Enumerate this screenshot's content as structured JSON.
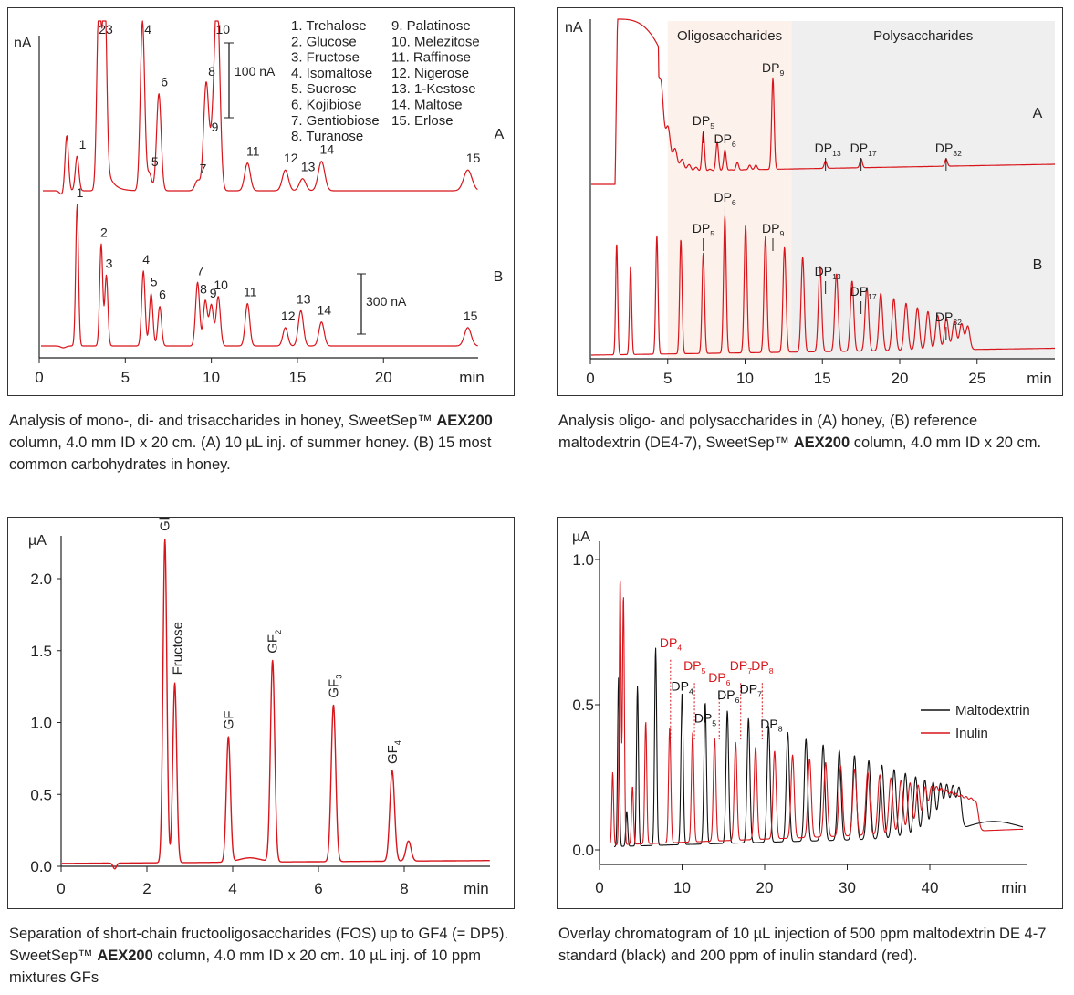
{
  "colors": {
    "red": "#d7151b",
    "black": "#111111",
    "axis": "#222222",
    "oligo_bg": "#fdf1ec",
    "poly_bg": "#efefef"
  },
  "captions": {
    "c1": {
      "before": "Analysis of mono-, di- and trisaccharides in honey, SweetSep™ ",
      "bold": "AEX200",
      "after": " column, 4.0 mm ID x 20 cm. (A) 10 µL inj. of summer honey. (B) 15 most common carbohydrates in honey."
    },
    "c2": {
      "before": "Analysis oligo- and polysaccharides in (A) honey, (B) reference maltodextrin (DE4-7), SweetSep™ ",
      "bold": "AEX200",
      "after": " column, 4.0 mm ID x 20 cm."
    },
    "c3": {
      "before": "Separation of short-chain fructooligosaccharides (FOS) up to GF4 (= DP5). SweetSep™ ",
      "bold": "AEX200",
      "after": " column, 4.0 mm ID x 20 cm. 10 µL inj. of 10 ppm mixtures GFs"
    },
    "c4": {
      "before": "Overlay chromatogram of 10 µL injection of 500 ppm maltodextrin DE 4-7 standard (black) and 200 ppm of inulin standard (red).",
      "bold": "",
      "after": ""
    }
  },
  "chart_data": [
    {
      "type": "line",
      "ylabel": "nA",
      "xlabel": "min",
      "xlim": [
        0,
        25.5
      ],
      "x_ticks": [
        0,
        5,
        10,
        15,
        20
      ],
      "scale_bars": [
        {
          "label": "100 nA",
          "trace": "A"
        },
        {
          "label": "300 nA",
          "trace": "B"
        }
      ],
      "legend": [
        "1. Trehalose",
        "2. Glucose",
        "3. Fructose",
        "4. Isomaltose",
        "5. Sucrose",
        "6. Kojibiose",
        "7. Gentiobiose",
        "8. Turanose",
        "9. Palatinose",
        "10. Melezitose",
        "11. Raffinose",
        "12. Nigerose",
        "13. 1-Kestose",
        "14. Maltose",
        "15. Erlose"
      ],
      "series": [
        {
          "name": "A",
          "peaks": [
            {
              "label": "",
              "x": 1.6,
              "h": 0.32
            },
            {
              "label": "1",
              "x": 2.2,
              "h": 0.2
            },
            {
              "label": "",
              "x": 3.45,
              "h": 1.05
            },
            {
              "label": "",
              "x": 3.8,
              "h": 1.05
            },
            {
              "label": "4",
              "x": 6.0,
              "h": 0.98
            },
            {
              "label": "5",
              "x": 6.4,
              "h": 0.1
            },
            {
              "label": "6",
              "x": 6.95,
              "h": 0.56
            },
            {
              "label": "7",
              "x": 9.2,
              "h": 0.06
            },
            {
              "label": "8",
              "x": 9.7,
              "h": 0.62
            },
            {
              "label": "9",
              "x": 10.1,
              "h": 0.3
            },
            {
              "label": "10",
              "x": 10.35,
              "h": 1.05
            },
            {
              "label": "11",
              "x": 12.1,
              "h": 0.16
            },
            {
              "label": "12",
              "x": 14.3,
              "h": 0.12
            },
            {
              "label": "13",
              "x": 15.3,
              "h": 0.07
            },
            {
              "label": "14",
              "x": 16.4,
              "h": 0.17
            },
            {
              "label": "15",
              "x": 24.9,
              "h": 0.12
            }
          ],
          "top_label": "23"
        },
        {
          "name": "B",
          "peaks": [
            {
              "label": "1",
              "x": 2.2,
              "h": 1.0
            },
            {
              "label": "2",
              "x": 3.6,
              "h": 0.72
            },
            {
              "label": "3",
              "x": 3.9,
              "h": 0.5
            },
            {
              "label": "4",
              "x": 6.05,
              "h": 0.53
            },
            {
              "label": "5",
              "x": 6.5,
              "h": 0.37
            },
            {
              "label": "6",
              "x": 7.0,
              "h": 0.28
            },
            {
              "label": "7",
              "x": 9.2,
              "h": 0.45
            },
            {
              "label": "8",
              "x": 9.65,
              "h": 0.32
            },
            {
              "label": "9",
              "x": 10.0,
              "h": 0.29
            },
            {
              "label": "10",
              "x": 10.4,
              "h": 0.35
            },
            {
              "label": "11",
              "x": 12.1,
              "h": 0.3
            },
            {
              "label": "12",
              "x": 14.3,
              "h": 0.13
            },
            {
              "label": "13",
              "x": 15.2,
              "h": 0.25
            },
            {
              "label": "14",
              "x": 16.4,
              "h": 0.17
            },
            {
              "label": "15",
              "x": 24.9,
              "h": 0.13
            }
          ]
        }
      ]
    },
    {
      "type": "line",
      "ylabel": "nA",
      "xlabel": "min",
      "xlim": [
        0,
        30
      ],
      "x_ticks": [
        0,
        5,
        10,
        15,
        20,
        25
      ],
      "regions": [
        {
          "label": "Oligosaccharides",
          "x": [
            5,
            13
          ]
        },
        {
          "label": "Polysaccharides",
          "x": [
            13,
            30
          ]
        }
      ],
      "series": [
        {
          "name": "A",
          "peak_labels": [
            {
              "dp": "5",
              "x": 7.3
            },
            {
              "dp": "6",
              "x": 8.7
            },
            {
              "dp": "9",
              "x": 11.8
            },
            {
              "dp": "13",
              "x": 15.2
            },
            {
              "dp": "17",
              "x": 17.5
            },
            {
              "dp": "32",
              "x": 23.0
            }
          ]
        },
        {
          "name": "B",
          "peak_labels": [
            {
              "dp": "5",
              "x": 7.3
            },
            {
              "dp": "6",
              "x": 8.7
            },
            {
              "dp": "9",
              "x": 11.8
            },
            {
              "dp": "13",
              "x": 15.2
            },
            {
              "dp": "17",
              "x": 17.5
            },
            {
              "dp": "32",
              "x": 23.0
            }
          ]
        }
      ]
    },
    {
      "type": "line",
      "ylabel": "µA",
      "xlabel": "min",
      "xlim": [
        0,
        10
      ],
      "ylim": [
        -0.1,
        2.3
      ],
      "x_ticks": [
        0,
        2,
        4,
        6,
        8
      ],
      "y_ticks": [
        "0.0",
        "0.5",
        "1.0",
        "1.5",
        "2.0"
      ],
      "peaks": [
        {
          "name": "Glucose",
          "sub": "",
          "x": 2.42,
          "y": 2.28
        },
        {
          "name": "Fructose",
          "sub": "",
          "x": 2.65,
          "y": 1.28
        },
        {
          "name": "GF",
          "sub": "",
          "x": 3.9,
          "y": 0.9
        },
        {
          "name": "GF",
          "sub": "2",
          "x": 4.93,
          "y": 1.43
        },
        {
          "name": "GF",
          "sub": "3",
          "x": 6.35,
          "y": 1.12
        },
        {
          "name": "GF",
          "sub": "4",
          "x": 7.72,
          "y": 0.66
        }
      ]
    },
    {
      "type": "line",
      "ylabel": "µA",
      "xlabel": "min",
      "xlim": [
        0,
        52
      ],
      "ylim": [
        -0.05,
        1.1
      ],
      "x_ticks": [
        0,
        10,
        20,
        30,
        40
      ],
      "y_ticks": [
        "0.0",
        "0.5",
        "1.0"
      ],
      "legend": [
        "Maltodextrin",
        "Inulin"
      ],
      "series": [
        {
          "name": "Maltodextrin",
          "color": "#111111",
          "labels": [
            {
              "dp": "4",
              "x": 10.0,
              "y": 0.53
            },
            {
              "dp": "5",
              "x": 12.8,
              "y": 0.42
            },
            {
              "dp": "6",
              "x": 15.6,
              "y": 0.5
            },
            {
              "dp": "7",
              "x": 18.3,
              "y": 0.52
            },
            {
              "dp": "8",
              "x": 20.8,
              "y": 0.4
            }
          ]
        },
        {
          "name": "Inulin",
          "color": "#d7151b",
          "labels": [
            {
              "dp": "4",
              "x": 8.6,
              "y": 0.68
            },
            {
              "dp": "5",
              "x": 11.5,
              "y": 0.6
            },
            {
              "dp": "6",
              "x": 14.5,
              "y": 0.56
            },
            {
              "dp": "7",
              "x": 17.1,
              "y": 0.6
            },
            {
              "dp": "8",
              "x": 19.7,
              "y": 0.6
            }
          ]
        }
      ]
    }
  ]
}
